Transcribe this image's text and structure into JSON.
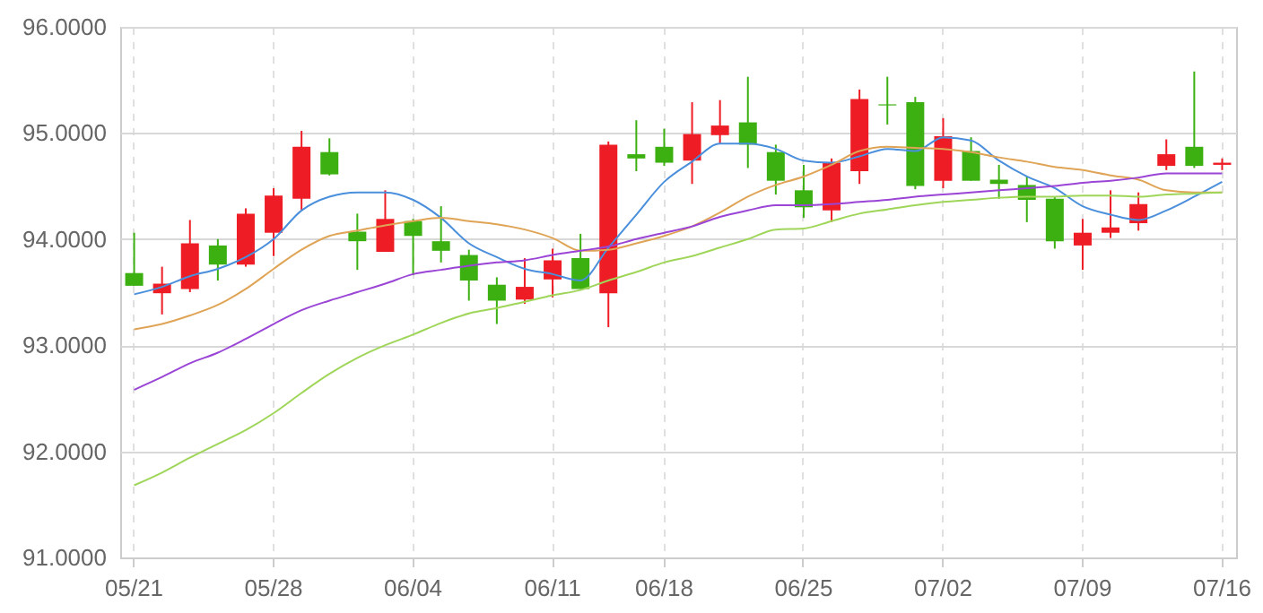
{
  "chart_data": {
    "type": "candlestick",
    "categories": [
      "05/21",
      null,
      null,
      null,
      null,
      "05/28",
      null,
      null,
      null,
      null,
      "06/04",
      null,
      null,
      null,
      null,
      "06/11",
      null,
      null,
      null,
      "06/18",
      null,
      null,
      null,
      null,
      "06/25",
      null,
      null,
      null,
      null,
      "07/02",
      null,
      null,
      null,
      null,
      "07/09",
      null,
      null,
      null,
      null,
      "07/16"
    ],
    "ohlc": [
      [
        93.68,
        94.06,
        93.56,
        93.56
      ],
      [
        93.49,
        93.74,
        93.29,
        93.58
      ],
      [
        93.53,
        94.18,
        93.5,
        93.96
      ],
      [
        93.94,
        94.0,
        93.61,
        93.76
      ],
      [
        93.76,
        94.29,
        93.74,
        94.24
      ],
      [
        94.06,
        94.48,
        93.84,
        94.41
      ],
      [
        94.38,
        95.02,
        94.27,
        94.87
      ],
      [
        94.82,
        94.95,
        94.6,
        94.61
      ],
      [
        94.07,
        94.24,
        93.71,
        93.98
      ],
      [
        93.88,
        94.46,
        93.88,
        94.19
      ],
      [
        94.17,
        94.19,
        93.66,
        94.03
      ],
      [
        93.98,
        94.31,
        93.78,
        93.89
      ],
      [
        93.85,
        93.9,
        93.42,
        93.61
      ],
      [
        93.57,
        93.64,
        93.2,
        93.42
      ],
      [
        93.43,
        93.82,
        93.39,
        93.55
      ],
      [
        93.62,
        93.91,
        93.45,
        93.8
      ],
      [
        93.82,
        94.05,
        93.53,
        93.53
      ],
      [
        93.49,
        94.92,
        93.17,
        94.89
      ],
      [
        94.8,
        95.12,
        94.64,
        94.76
      ],
      [
        94.87,
        95.04,
        94.69,
        94.72
      ],
      [
        94.74,
        95.29,
        94.52,
        94.99
      ],
      [
        94.98,
        95.31,
        94.9,
        95.07
      ],
      [
        95.1,
        95.53,
        94.67,
        94.89
      ],
      [
        94.82,
        94.89,
        94.42,
        94.55
      ],
      [
        94.46,
        94.7,
        94.2,
        94.3
      ],
      [
        94.27,
        94.76,
        94.16,
        94.72
      ],
      [
        94.64,
        95.41,
        94.52,
        95.32
      ],
      [
        95.27,
        95.53,
        95.08,
        95.26
      ],
      [
        95.29,
        95.34,
        94.47,
        94.5
      ],
      [
        94.55,
        95.14,
        94.48,
        94.97
      ],
      [
        94.83,
        94.96,
        94.55,
        94.55
      ],
      [
        94.56,
        94.7,
        94.38,
        94.52
      ],
      [
        94.51,
        94.59,
        94.16,
        94.37
      ],
      [
        94.38,
        94.4,
        93.91,
        93.98
      ],
      [
        93.94,
        94.19,
        93.71,
        94.06
      ],
      [
        94.06,
        94.46,
        94.01,
        94.11
      ],
      [
        94.15,
        94.44,
        94.08,
        94.33
      ],
      [
        94.69,
        94.94,
        94.65,
        94.8
      ],
      [
        94.87,
        95.58,
        94.67,
        94.69
      ],
      [
        94.7,
        94.76,
        94.65,
        94.72
      ]
    ],
    "colors": [
      "#3cb011",
      "#ee1c24",
      "#ee1c24",
      "#3cb011",
      "#ee1c24",
      "#ee1c24",
      "#ee1c24",
      "#3cb011",
      "#3cb011",
      "#ee1c24",
      "#3cb011",
      "#3cb011",
      "#3cb011",
      "#3cb011",
      "#ee1c24",
      "#ee1c24",
      "#3cb011",
      "#ee1c24",
      "#3cb011",
      "#3cb011",
      "#ee1c24",
      "#ee1c24",
      "#3cb011",
      "#3cb011",
      "#3cb011",
      "#ee1c24",
      "#ee1c24",
      "#3cb011",
      "#3cb011",
      "#ee1c24",
      "#3cb011",
      "#3cb011",
      "#3cb011",
      "#3cb011",
      "#ee1c24",
      "#ee1c24",
      "#ee1c24",
      "#ee1c24",
      "#3cb011",
      "#ee1c24"
    ],
    "series": [
      {
        "type": "line",
        "color": "#4a8fdc",
        "values": [
          93.48,
          93.55,
          93.65,
          93.72,
          93.83,
          94.0,
          94.27,
          94.4,
          94.44,
          94.44,
          94.37,
          94.2,
          93.96,
          93.83,
          93.72,
          93.67,
          93.61,
          93.92,
          94.23,
          94.54,
          94.73,
          94.9,
          94.9,
          94.85,
          94.74,
          94.72,
          94.78,
          94.85,
          94.83,
          94.96,
          94.93,
          94.74,
          94.59,
          94.48,
          94.31,
          94.23,
          94.18,
          94.27,
          94.4,
          94.54
        ]
      },
      {
        "type": "line",
        "color": "#dfa456",
        "values": [
          93.15,
          93.2,
          93.28,
          93.38,
          93.53,
          93.72,
          93.9,
          94.03,
          94.08,
          94.13,
          94.17,
          94.2,
          94.17,
          94.14,
          94.09,
          94.01,
          93.89,
          93.9,
          93.96,
          94.03,
          94.12,
          94.25,
          94.4,
          94.51,
          94.59,
          94.7,
          94.83,
          94.87,
          94.86,
          94.85,
          94.82,
          94.77,
          94.73,
          94.68,
          94.65,
          94.6,
          94.56,
          94.46,
          94.44,
          94.44
        ]
      },
      {
        "type": "line",
        "color": "#9a45d6",
        "values": [
          92.58,
          92.7,
          92.83,
          92.93,
          93.06,
          93.2,
          93.33,
          93.42,
          93.5,
          93.58,
          93.67,
          93.71,
          93.75,
          93.78,
          93.8,
          93.85,
          93.89,
          93.93,
          94.0,
          94.06,
          94.12,
          94.21,
          94.27,
          94.32,
          94.32,
          94.33,
          94.35,
          94.37,
          94.4,
          94.42,
          94.44,
          94.46,
          94.48,
          94.5,
          94.53,
          94.55,
          94.58,
          94.62,
          94.62,
          94.62
        ]
      },
      {
        "type": "line",
        "color": "#9fd65a",
        "values": [
          91.68,
          91.8,
          91.94,
          92.07,
          92.2,
          92.36,
          92.55,
          92.73,
          92.88,
          93.0,
          93.1,
          93.21,
          93.3,
          93.35,
          93.41,
          93.47,
          93.52,
          93.61,
          93.69,
          93.78,
          93.84,
          93.92,
          94.0,
          94.09,
          94.1,
          94.17,
          94.24,
          94.28,
          94.32,
          94.35,
          94.37,
          94.39,
          94.4,
          94.4,
          94.41,
          94.41,
          94.4,
          94.42,
          94.43,
          94.44
        ]
      }
    ],
    "ylim": [
      91,
      96
    ],
    "yticks": [
      {
        "value": 91,
        "label": "91.0000"
      },
      {
        "value": 92,
        "label": "92.0000"
      },
      {
        "value": 93,
        "label": "93.0000"
      },
      {
        "value": 94,
        "label": "94.0000"
      },
      {
        "value": 95,
        "label": "95.0000"
      },
      {
        "value": 96,
        "label": "96.0000"
      }
    ],
    "grid": true
  }
}
